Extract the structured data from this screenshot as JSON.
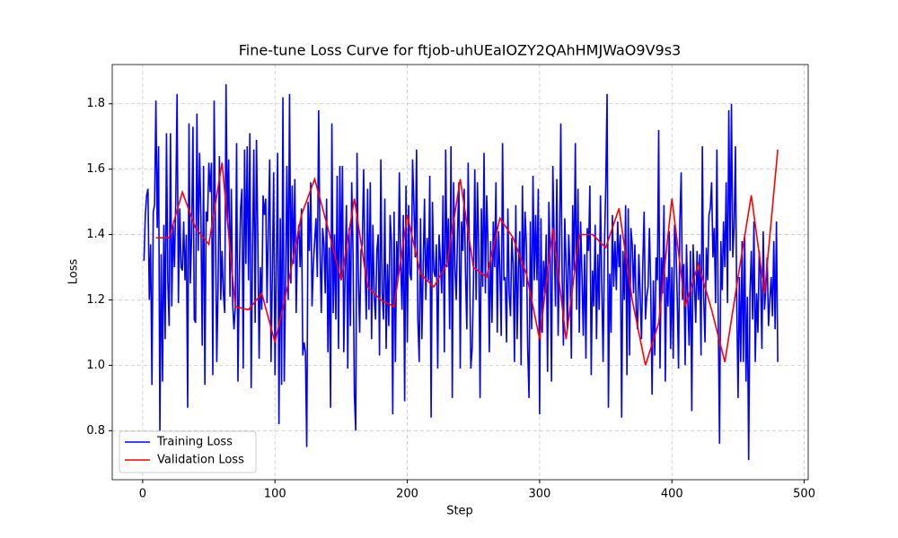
{
  "chart_data": {
    "type": "line",
    "title": "Fine-tune Loss Curve for ftjob-uhUEaIOZY2QAhHMJWaO9V9s3",
    "x_label": "Step",
    "y_label": "Loss",
    "xlim": [
      -23,
      503
    ],
    "ylim": [
      0.65,
      1.92
    ],
    "xticks": [
      0,
      100,
      200,
      300,
      400,
      500
    ],
    "yticks": [
      0.8,
      {
        "value": 1,
        "label": "1.0"
      },
      1.2,
      1.4,
      1.6,
      1.8
    ],
    "grid": true,
    "legend": "lower left",
    "series": [
      {
        "name": "Training Loss",
        "color": "#0000ff",
        "x": [
          1,
          2,
          3,
          4,
          5,
          6,
          7,
          8,
          9,
          10,
          11,
          12,
          13,
          14,
          15,
          16,
          17,
          18,
          19,
          20,
          21,
          22,
          23,
          24,
          25,
          26,
          27,
          28,
          29,
          30,
          31,
          32,
          33,
          34,
          35,
          36,
          37,
          38,
          39,
          40,
          41,
          42,
          43,
          44,
          45,
          46,
          47,
          48,
          49,
          50,
          51,
          52,
          53,
          54,
          55,
          56,
          57,
          58,
          59,
          60,
          61,
          62,
          63,
          64,
          65,
          66,
          67,
          68,
          69,
          70,
          71,
          72,
          73,
          74,
          75,
          76,
          77,
          78,
          79,
          80,
          81,
          82,
          83,
          84,
          85,
          86,
          87,
          88,
          89,
          90,
          91,
          92,
          93,
          94,
          95,
          96,
          97,
          98,
          99,
          100,
          101,
          102,
          103,
          104,
          105,
          106,
          107,
          108,
          109,
          110,
          111,
          112,
          113,
          114,
          115,
          116,
          117,
          118,
          119,
          120,
          121,
          122,
          123,
          124,
          125,
          126,
          127,
          128,
          129,
          130,
          131,
          132,
          133,
          134,
          135,
          136,
          137,
          138,
          139,
          140,
          141,
          142,
          143,
          144,
          145,
          146,
          147,
          148,
          149,
          150,
          151,
          152,
          153,
          154,
          155,
          156,
          157,
          158,
          159,
          160,
          161,
          162,
          163,
          164,
          165,
          166,
          167,
          168,
          169,
          170,
          171,
          172,
          173,
          174,
          175,
          176,
          177,
          178,
          179,
          180,
          181,
          182,
          183,
          184,
          185,
          186,
          187,
          188,
          189,
          190,
          191,
          192,
          193,
          194,
          195,
          196,
          197,
          198,
          199,
          200,
          201,
          202,
          203,
          204,
          205,
          206,
          207,
          208,
          209,
          210,
          211,
          212,
          213,
          214,
          215,
          216,
          217,
          218,
          219,
          220,
          221,
          222,
          223,
          224,
          225,
          226,
          227,
          228,
          229,
          230,
          231,
          232,
          233,
          234,
          235,
          236,
          237,
          238,
          239,
          240,
          241,
          242,
          243,
          244,
          245,
          246,
          247,
          248,
          249,
          250,
          251,
          252,
          253,
          254,
          255,
          256,
          257,
          258,
          259,
          260,
          261,
          262,
          263,
          264,
          265,
          266,
          267,
          268,
          269,
          270,
          271,
          272,
          273,
          274,
          275,
          276,
          277,
          278,
          279,
          280,
          281,
          282,
          283,
          284,
          285,
          286,
          287,
          288,
          289,
          290,
          291,
          292,
          293,
          294,
          295,
          296,
          297,
          298,
          299,
          300,
          301,
          302,
          303,
          304,
          305,
          306,
          307,
          308,
          309,
          310,
          311,
          312,
          313,
          314,
          315,
          316,
          317,
          318,
          319,
          320,
          321,
          322,
          323,
          324,
          325,
          326,
          327,
          328,
          329,
          330,
          331,
          332,
          333,
          334,
          335,
          336,
          337,
          338,
          339,
          340,
          341,
          342,
          343,
          344,
          345,
          346,
          347,
          348,
          349,
          350,
          351,
          352,
          353,
          354,
          355,
          356,
          357,
          358,
          359,
          360,
          361,
          362,
          363,
          364,
          365,
          366,
          367,
          368,
          369,
          370,
          371,
          372,
          373,
          374,
          375,
          376,
          377,
          378,
          379,
          380,
          381,
          382,
          383,
          384,
          385,
          386,
          387,
          388,
          389,
          390,
          391,
          392,
          393,
          394,
          395,
          396,
          397,
          398,
          399,
          400,
          401,
          402,
          403,
          404,
          405,
          406,
          407,
          408,
          409,
          410,
          411,
          412,
          413,
          414,
          415,
          416,
          417,
          418,
          419,
          420,
          421,
          422,
          423,
          424,
          425,
          426,
          427,
          428,
          429,
          430,
          431,
          432,
          433,
          434,
          435,
          436,
          437,
          438,
          439,
          440,
          441,
          442,
          443,
          444,
          445,
          446,
          447,
          448,
          449,
          450,
          451,
          452,
          453,
          454,
          455,
          456,
          457,
          458,
          459,
          460,
          461,
          462,
          463,
          464,
          465,
          466,
          467,
          468,
          469,
          470,
          471,
          472,
          473,
          474,
          475,
          476,
          477,
          478,
          479,
          480
        ],
        "values": [
          1.32,
          1.46,
          1.52,
          1.54,
          1.2,
          1.37,
          0.94,
          1.47,
          1.49,
          1.81,
          1.42,
          1.67,
          0.8,
          1.34,
          0.95,
          1.43,
          1.08,
          1.71,
          1.26,
          1.12,
          1.71,
          1.18,
          1.43,
          1.3,
          1.5,
          1.83,
          1.19,
          1.48,
          1.3,
          1.29,
          1.44,
          1.26,
          1.4,
          0.87,
          1.74,
          1.25,
          1.4,
          1.73,
          1.14,
          1.13,
          1.77,
          1.35,
          1.65,
          1.46,
          1.06,
          1.61,
          0.94,
          1.47,
          1.44,
          1.62,
          1.53,
          1.62,
          0.97,
          1.81,
          1.42,
          1.01,
          1.25,
          1.64,
          1.2,
          1.35,
          1.22,
          1.16,
          1.86,
          1.44,
          1.63,
          1.21,
          1.54,
          1.19,
          1.11,
          1.18,
          1.68,
          0.95,
          1.27,
          1.48,
          1.54,
          0.99,
          1.66,
          1.31,
          1.67,
          1.26,
          1.71,
          0.93,
          1.35,
          1.66,
          1.13,
          1.69,
          1.4,
          1.02,
          1.3,
          1.17,
          1.52,
          1.46,
          1.51,
          1.19,
          1.43,
          1.63,
          1.01,
          1.28,
          1.59,
          0.97,
          1.3,
          1.65,
          0.82,
          1.45,
          0.94,
          1.82,
          0.95,
          1.25,
          1.61,
          1.2,
          1.83,
          1.25,
          1.55,
          1.31,
          1.57,
          1.16,
          1.38,
          1.43,
          1.3,
          1.48,
          1.03,
          1.07,
          1.04,
          0.75,
          1.5,
          1.35,
          1.56,
          1.18,
          1.31,
          1.38,
          1.45,
          1.27,
          1.78,
          1.36,
          1.16,
          1.42,
          1.37,
          1.22,
          1.51,
          1.04,
          1.36,
          0.87,
          1.74,
          1.16,
          1.4,
          1.14,
          1.58,
          1.05,
          1.61,
          1.27,
          1.61,
          1.04,
          1.29,
          1.49,
          0.99,
          1.42,
          1.12,
          1.56,
          1.34,
          0.91,
          0.8,
          1.65,
          1.27,
          1.1,
          1.35,
          1.37,
          1.6,
          1.31,
          1.14,
          1.54,
          1.17,
          1.56,
          1.08,
          1.43,
          1.21,
          1.14,
          1.35,
          1.4,
          1.03,
          1.63,
          1.22,
          1.14,
          1.51,
          1.05,
          1.31,
          1.12,
          1.46,
          1.38,
          0.85,
          1.47,
          1.01,
          1.38,
          1.26,
          1.59,
          1.31,
          1.17,
          1.46,
          0.89,
          1.55,
          1.07,
          1.49,
          1.28,
          1.26,
          1.63,
          1.49,
          1.33,
          1.66,
          1.14,
          1.01,
          1.45,
          1.08,
          1.3,
          1.51,
          1.2,
          1.39,
          1.26,
          1.58,
          0.84,
          1.5,
          1.29,
          1.27,
          1.37,
          0.99,
          1.4,
          1.32,
          1.22,
          1.52,
          1.04,
          1.66,
          1.3,
          1.45,
          1.11,
          1.67,
          0.9,
          1.56,
          1.3,
          1.2,
          1.41,
          1.56,
          0.99,
          1.44,
          1.35,
          1.54,
          1.28,
          1.11,
          1.62,
          1.34,
          0.99,
          1.05,
          1.25,
          1.6,
          1.2,
          1.56,
          1.36,
          0.9,
          1.48,
          1.24,
          1.65,
          1.22,
          1.52,
          1.37,
          1.04,
          1.38,
          1.13,
          1.44,
          1.3,
          1.56,
          1.1,
          1.41,
          1.29,
          1.09,
          1.68,
          1.26,
          1.27,
          1.07,
          1.48,
          1.22,
          1.15,
          1.39,
          1.31,
          1.01,
          1.49,
          1.08,
          1.3,
          1.41,
          1.0,
          1.55,
          1.24,
          1.47,
          1.37,
          1.05,
          0.9,
          1.44,
          1.11,
          1.58,
          1.26,
          1.46,
          1.26,
          1.54,
          0.85,
          1.45,
          1.1,
          1.32,
          1.22,
          1.4,
          0.98,
          1.5,
          1.33,
          0.95,
          1.61,
          1.38,
          1.18,
          1.57,
          1.09,
          1.34,
          1.74,
          1.28,
          1.06,
          1.45,
          1.31,
          1.11,
          1.4,
          1.29,
          1.02,
          1.49,
          1.29,
          1.68,
          1.17,
          1.54,
          1.1,
          1.44,
          1.28,
          1.09,
          1.34,
          1.02,
          1.42,
          1.35,
          1.55,
          0.97,
          1.29,
          1.18,
          1.43,
          1.08,
          1.34,
          1.17,
          1.52,
          1.24,
          1.01,
          1.36,
          1.55,
          1.83,
          0.87,
          1.28,
          1.1,
          1.46,
          1.24,
          1.38,
          1.23,
          1.44,
          1.3,
          1.4,
          0.84,
          1.35,
          1.2,
          1.49,
          0.97,
          1.48,
          1.03,
          1.42,
          1.37,
          1.22,
          1.37,
          1.17,
          1.11,
          1.34,
          1.21,
          1.08,
          1.31,
          1.47,
          1.14,
          1.21,
          1.24,
          1.42,
          1.23,
          0.91,
          1.26,
          1.03,
          1.33,
          1.26,
          1.72,
          0.99,
          1.33,
          1.22,
          1.49,
          0.95,
          1.27,
          1.18,
          1.41,
          1.05,
          1.3,
          1.02,
          1.43,
          1.37,
          1.21,
          0.99,
          1.44,
          1.59,
          1.2,
          1.31,
          1.0,
          1.37,
          1.2,
          1.06,
          1.35,
          0.86,
          1.37,
          1.25,
          1.13,
          1.35,
          1.2,
          1.34,
          1.03,
          1.67,
          1.21,
          1.07,
          1.36,
          1.26,
          1.46,
          1.48,
          1.56,
          1.33,
          1.42,
          1.19,
          1.66,
          1.15,
          0.76,
          1.38,
          1.23,
          1.44,
          1.3,
          1.56,
          1.19,
          1.78,
          1.35,
          1.8,
          1.33,
          1.42,
          1.67,
          1.19,
          0.9,
          1.27,
          1.01,
          1.38,
          1.01,
          1.4,
          0.95,
          1.21,
          0.71,
          1.22,
          1.35,
          1.14,
          1.44,
          1.01,
          1.22,
          1.1,
          1.35,
          1.28,
          1.05,
          1.41,
          1.17,
          1.24,
          1.33,
          1.12,
          1.2,
          1.27,
          1.15,
          1.38,
          1.11,
          1.44,
          1.01
        ]
      },
      {
        "name": "Validation Loss",
        "color": "#ff0000",
        "x": [
          10,
          20,
          30,
          40,
          50,
          60,
          70,
          80,
          90,
          100,
          110,
          120,
          130,
          140,
          150,
          160,
          170,
          180,
          190,
          200,
          210,
          220,
          230,
          240,
          250,
          260,
          270,
          280,
          290,
          300,
          310,
          320,
          330,
          340,
          350,
          360,
          370,
          380,
          390,
          400,
          410,
          420,
          430,
          440,
          450,
          460,
          470,
          480
        ],
        "values": [
          1.39,
          1.39,
          1.53,
          1.42,
          1.37,
          1.62,
          1.18,
          1.17,
          1.22,
          1.07,
          1.25,
          1.46,
          1.57,
          1.42,
          1.26,
          1.51,
          1.24,
          1.2,
          1.18,
          1.46,
          1.28,
          1.24,
          1.31,
          1.57,
          1.3,
          1.27,
          1.45,
          1.39,
          1.28,
          1.08,
          1.42,
          1.08,
          1.4,
          1.4,
          1.36,
          1.48,
          1.2,
          1.0,
          1.13,
          1.51,
          1.18,
          1.31,
          1.17,
          1.01,
          1.27,
          1.52,
          1.22,
          1.66
        ]
      }
    ]
  }
}
